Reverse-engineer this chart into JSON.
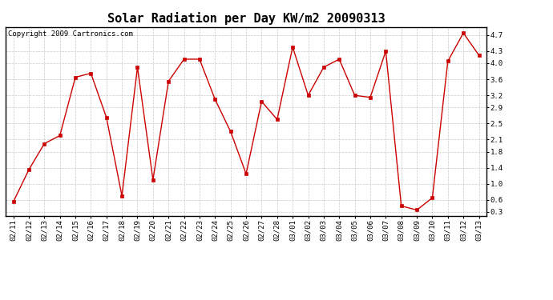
{
  "title": "Solar Radiation per Day KW/m2 20090313",
  "copyright": "Copyright 2009 Cartronics.com",
  "dates": [
    "02/11",
    "02/12",
    "02/13",
    "02/14",
    "02/15",
    "02/16",
    "02/17",
    "02/18",
    "02/19",
    "02/20",
    "02/21",
    "02/22",
    "02/23",
    "02/24",
    "02/25",
    "02/26",
    "02/27",
    "02/28",
    "03/01",
    "03/02",
    "03/03",
    "03/04",
    "03/05",
    "03/06",
    "03/07",
    "03/08",
    "03/09",
    "03/10",
    "03/11",
    "03/12",
    "03/13"
  ],
  "values": [
    0.55,
    1.35,
    2.0,
    2.2,
    3.65,
    3.75,
    2.65,
    0.7,
    3.9,
    1.1,
    3.55,
    4.1,
    4.1,
    3.1,
    2.3,
    1.25,
    3.05,
    2.6,
    4.4,
    3.2,
    3.9,
    4.1,
    3.2,
    3.15,
    4.3,
    0.45,
    0.35,
    0.65,
    4.05,
    4.75,
    4.2
  ],
  "line_color": "#cc0000",
  "marker": "s",
  "marker_color": "#cc0000",
  "marker_size": 2.5,
  "bg_color": "#ffffff",
  "plot_bg_color": "#ffffff",
  "grid_color": "#bbbbbb",
  "ylim": [
    0.2,
    4.9
  ],
  "yticks": [
    0.3,
    0.6,
    1.0,
    1.4,
    1.8,
    2.1,
    2.5,
    2.9,
    3.2,
    3.6,
    4.0,
    4.3,
    4.7
  ],
  "title_fontsize": 11,
  "tick_fontsize": 6.5,
  "copyright_fontsize": 6.5
}
